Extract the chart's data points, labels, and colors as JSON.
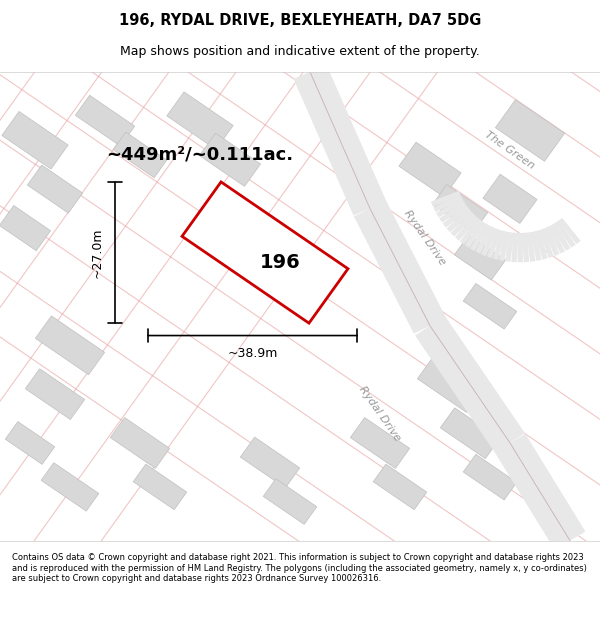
{
  "title_line1": "196, RYDAL DRIVE, BEXLEYHEATH, DA7 5DG",
  "title_line2": "Map shows position and indicative extent of the property.",
  "area_label": "~449m²/~0.111ac.",
  "property_number": "196",
  "dim_width": "~38.9m",
  "dim_height": "~27.0m",
  "footer": "Contains OS data © Crown copyright and database right 2021. This information is subject to Crown copyright and database rights 2023 and is reproduced with the permission of HM Land Registry. The polygons (including the associated geometry, namely x, y co-ordinates) are subject to Crown copyright and database rights 2023 Ordnance Survey 100026316.",
  "bg_color": "#f5f5f5",
  "map_bg": "#f0f0f0",
  "road_color": "#e8e8e8",
  "road_outline": "#d0b0b0",
  "property_color": "#cc0000",
  "property_fill": "#ffffff",
  "street_label1": "Rydal Drive",
  "street_label2": "Rydal Drive",
  "street_label3": "The Green",
  "road_line_color": "#e8a0a0"
}
